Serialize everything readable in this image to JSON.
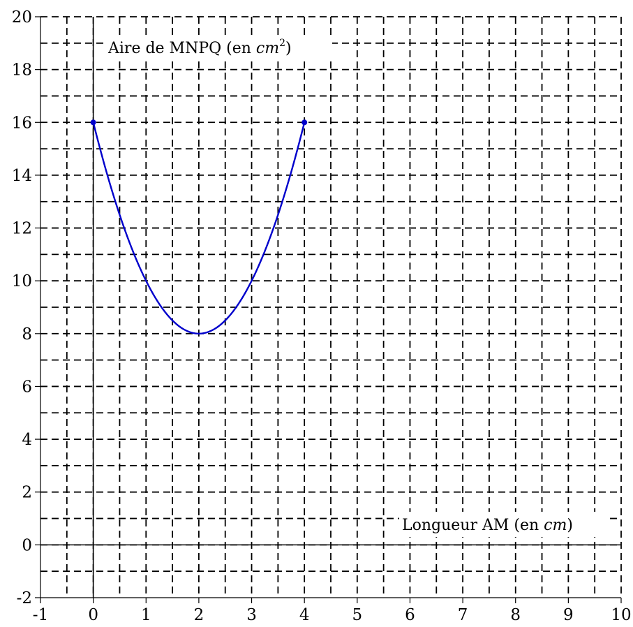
{
  "chart_data": {
    "type": "line",
    "title": "",
    "xlabel": {
      "text": "Longueur AM (en ",
      "unit": "cm",
      "close": ")"
    },
    "ylabel": {
      "text": "Aire de MNPQ (en ",
      "unit": "cm",
      "exponent": "2",
      "close": ")"
    },
    "xlim": [
      -1,
      10
    ],
    "ylim": [
      -2,
      20
    ],
    "grid": true,
    "grid_style": "dashed",
    "x_major_step": 1,
    "y_major_step": 2,
    "x_ticks": [
      "-1",
      "0",
      "1",
      "2",
      "3",
      "4",
      "5",
      "6",
      "7",
      "8",
      "9",
      "10"
    ],
    "y_ticks": [
      "-2",
      "0",
      "2",
      "4",
      "6",
      "8",
      "10",
      "12",
      "14",
      "16",
      "18",
      "20"
    ],
    "series": [
      {
        "function": "2x^2 - 8x + 16",
        "domain": [
          0,
          4
        ],
        "color": "#0000cc",
        "endpoints": [
          {
            "x": 0,
            "y": 16
          },
          {
            "x": 4,
            "y": 16
          }
        ],
        "minimum": {
          "x": 2,
          "y": 8
        }
      }
    ]
  }
}
